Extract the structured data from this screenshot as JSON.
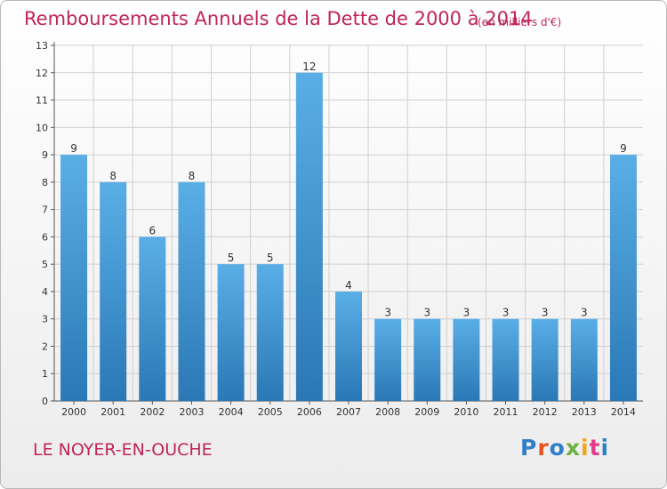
{
  "header": {
    "title": "Remboursements Annuels de la Dette de 2000 à 2014",
    "unit": "(en milliers d'€)"
  },
  "footer": {
    "commune": "LE NOYER-EN-OUCHE",
    "logo": "Proxiti"
  },
  "colors": {
    "bar_top": "#5aaee6",
    "bar_bottom": "#2a78b6",
    "title": "#c0245a",
    "grid": "#d0d0d0"
  },
  "chart_data": {
    "type": "bar",
    "title": "Remboursements Annuels de la Dette de 2000 à 2014",
    "subtitle": "(en milliers d'€)",
    "xlabel": "",
    "ylabel": "",
    "categories": [
      "2000",
      "2001",
      "2002",
      "2003",
      "2004",
      "2005",
      "2006",
      "2007",
      "2008",
      "2009",
      "2010",
      "2011",
      "2012",
      "2013",
      "2014"
    ],
    "values": [
      9,
      8,
      6,
      8,
      5,
      5,
      12,
      4,
      3,
      3,
      3,
      3,
      3,
      3,
      9
    ],
    "ylim": [
      0,
      13
    ],
    "yticks": [
      0,
      1,
      2,
      3,
      4,
      5,
      6,
      7,
      8,
      9,
      10,
      11,
      12,
      13
    ],
    "grid": true,
    "legend": "none"
  }
}
